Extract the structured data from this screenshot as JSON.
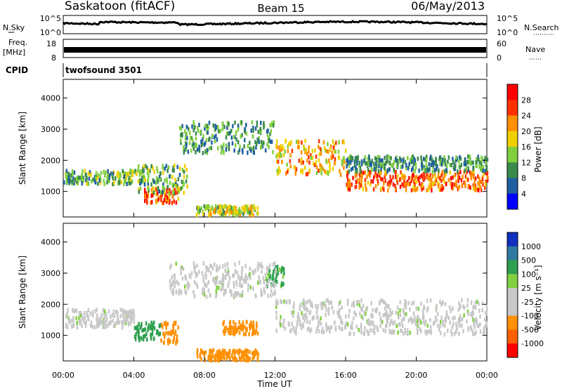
{
  "header": {
    "station": "Saskatoon (fitACF)",
    "beam": "Beam 15",
    "date": "06/May/2013"
  },
  "summary_panels": {
    "nsky_label": "N.Sky",
    "nsky_ticks": [
      "10^5",
      "10^0"
    ],
    "nsearch_label": "N.Search",
    "nsearch_ticks": [
      "10^5",
      "10^0"
    ],
    "freq_label": "Freq.",
    "freq_unit": "[MHz]",
    "freq_ticks": [
      "18",
      "8"
    ],
    "nave_label": "Nave",
    "nave_ticks": [
      "60",
      "0"
    ],
    "cpid_label": "CPID",
    "cpid_value": "twofsound 3501"
  },
  "axes": {
    "xlabel": "Time UT",
    "xticks": [
      "00:00",
      "04:00",
      "08:00",
      "12:00",
      "16:00",
      "20:00",
      "00:00"
    ],
    "ylabel": "Slant Range [km]",
    "yticks": [
      "1000",
      "2000",
      "3000",
      "4000"
    ]
  },
  "power_scale": {
    "label": "Power [dB]",
    "ticks": [
      "4",
      "8",
      "12",
      "16",
      "20",
      "24",
      "28"
    ],
    "colors": [
      "#0000ff",
      "#1f5fa0",
      "#3a8a4a",
      "#80d040",
      "#f0d000",
      "#ff9000",
      "#ff3000",
      "#ff0000"
    ]
  },
  "velocity_scale": {
    "label": "Velocity [m s⁻¹]",
    "ticks": [
      "1000",
      "500",
      "100",
      "25",
      "-25",
      "-100",
      "-500",
      "-1000"
    ],
    "colors": [
      "#1030c0",
      "#2f7aa0",
      "#2fa050",
      "#80d040",
      "#c8c8c8",
      "#c8c8c8",
      "#ff9000",
      "#ff6000",
      "#ff0000"
    ]
  },
  "chart_data": {
    "type": "heatmap",
    "x_range_hours": [
      0,
      24
    ],
    "y_range_km": [
      180,
      4600
    ],
    "power_bands": [
      {
        "t": [
          0.0,
          4.5
        ],
        "r": [
          1300,
          1750
        ],
        "power": 12
      },
      {
        "t": [
          4.5,
          6.5
        ],
        "r": [
          700,
          1200
        ],
        "power": 24
      },
      {
        "t": [
          4.2,
          7.0
        ],
        "r": [
          1000,
          1900
        ],
        "power": 12
      },
      {
        "t": [
          6.5,
          12.0
        ],
        "r": [
          2300,
          3300
        ],
        "power": 10
      },
      {
        "t": [
          7.5,
          11.0
        ],
        "r": [
          300,
          600
        ],
        "power": 16
      },
      {
        "t": [
          12.0,
          16.0
        ],
        "r": [
          1600,
          2700
        ],
        "power": 20
      },
      {
        "t": [
          16.0,
          24.0
        ],
        "r": [
          1100,
          1700
        ],
        "power": 24
      },
      {
        "t": [
          16.0,
          24.0
        ],
        "r": [
          1700,
          2200
        ],
        "power": 10
      }
    ],
    "velocity_bands": [
      {
        "t": [
          0.0,
          4.0
        ],
        "r": [
          1300,
          1900
        ],
        "velocity": 0
      },
      {
        "t": [
          4.0,
          5.5
        ],
        "r": [
          900,
          1500
        ],
        "velocity": 300
      },
      {
        "t": [
          5.5,
          6.5
        ],
        "r": [
          800,
          1500
        ],
        "velocity": -300
      },
      {
        "t": [
          7.5,
          11.0
        ],
        "r": [
          250,
          600
        ],
        "velocity": -400
      },
      {
        "t": [
          9.0,
          11.0
        ],
        "r": [
          1100,
          1500
        ],
        "velocity": -300
      },
      {
        "t": [
          11.5,
          12.5
        ],
        "r": [
          2600,
          3300
        ],
        "velocity": 120
      },
      {
        "t": [
          6.0,
          12.0
        ],
        "r": [
          2300,
          3400
        ],
        "velocity": 0
      },
      {
        "t": [
          12.0,
          24.0
        ],
        "r": [
          1100,
          2200
        ],
        "velocity": 0
      }
    ]
  }
}
